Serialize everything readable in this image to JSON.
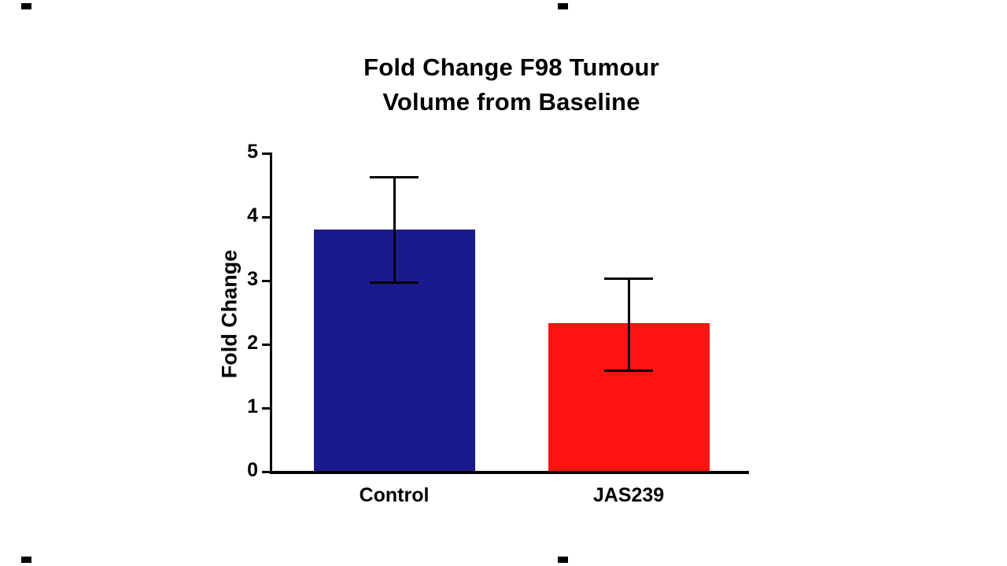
{
  "chart_data": {
    "type": "bar",
    "title_lines": [
      "Fold Change F98 Tumour",
      "Volume from Baseline"
    ],
    "ylabel": "Fold Change",
    "categories": [
      "Control",
      "JAS239"
    ],
    "values": [
      3.8,
      2.33
    ],
    "error_upper": [
      0.82,
      0.7
    ],
    "error_lower": [
      0.83,
      0.74
    ],
    "bar_colors": [
      "#1A1A8C",
      "#FC1312"
    ],
    "axis_color": "#000000",
    "ylim": [
      0,
      5
    ],
    "yticks": [
      0,
      1,
      2,
      3,
      4,
      5
    ],
    "grid": false,
    "legend": "none"
  },
  "page": {
    "background": "#FFFFFF"
  }
}
